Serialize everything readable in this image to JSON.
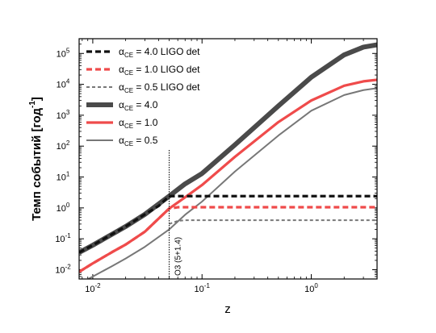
{
  "chart_data": {
    "type": "line",
    "xlabel": "z",
    "ylabel": "Темп событий [год",
    "ylabel_sup": "-1",
    "ylabel_close": "]",
    "xscale": "log",
    "yscale": "log",
    "xlim": [
      0.0075,
      4.0
    ],
    "ylim": [
      0.005,
      300000
    ],
    "x_ticks": [
      {
        "base": "10",
        "exp": "-2",
        "value": 0.01
      },
      {
        "base": "10",
        "exp": "-1",
        "value": 0.1
      },
      {
        "base": "10",
        "exp": "0",
        "value": 1
      }
    ],
    "y_ticks": [
      {
        "base": "10",
        "exp": "-2",
        "value": 0.01
      },
      {
        "base": "10",
        "exp": "-1",
        "value": 0.1
      },
      {
        "base": "10",
        "exp": "0",
        "value": 1
      },
      {
        "base": "10",
        "exp": "1",
        "value": 10
      },
      {
        "base": "10",
        "exp": "2",
        "value": 100
      },
      {
        "base": "10",
        "exp": "3",
        "value": 1000
      },
      {
        "base": "10",
        "exp": "4",
        "value": 10000
      },
      {
        "base": "10",
        "exp": "5",
        "value": 100000
      }
    ],
    "legend_position": "top-left",
    "series": [
      {
        "name_prefix": "α",
        "name_sub": "CE",
        "name_suffix": " = 4.0 LIGO det",
        "color": "#111111",
        "style": "dashed",
        "width": "thick",
        "points": [
          [
            0.0075,
            0.036
          ],
          [
            0.01,
            0.062
          ],
          [
            0.015,
            0.14
          ],
          [
            0.02,
            0.25
          ],
          [
            0.03,
            0.62
          ],
          [
            0.04,
            1.15
          ],
          [
            0.05,
            2.4
          ],
          [
            0.07,
            2.4
          ],
          [
            0.1,
            2.4
          ],
          [
            0.2,
            2.4
          ],
          [
            0.5,
            2.4
          ],
          [
            1,
            2.4
          ],
          [
            2,
            2.4
          ],
          [
            4,
            2.4
          ]
        ]
      },
      {
        "name_prefix": "α",
        "name_sub": "CE",
        "name_suffix": " = 1.0 LIGO det",
        "color": "#ef4b4b",
        "style": "dashed",
        "width": "thick",
        "points": [
          [
            0.0075,
            0.0085
          ],
          [
            0.01,
            0.016
          ],
          [
            0.015,
            0.037
          ],
          [
            0.02,
            0.065
          ],
          [
            0.03,
            0.17
          ],
          [
            0.04,
            0.45
          ],
          [
            0.05,
            0.95
          ],
          [
            0.06,
            1.05
          ],
          [
            0.1,
            1.05
          ],
          [
            0.2,
            1.05
          ],
          [
            0.5,
            1.05
          ],
          [
            1,
            1.05
          ],
          [
            2,
            1.05
          ],
          [
            4,
            1.05
          ]
        ]
      },
      {
        "name_prefix": "α",
        "name_sub": "CE",
        "name_suffix": " = 0.5 LIGO det",
        "color": "#777777",
        "style": "dashed",
        "width": "thin",
        "points": [
          [
            0.05,
            0.3
          ],
          [
            0.06,
            0.38
          ],
          [
            0.07,
            0.4
          ],
          [
            0.1,
            0.4
          ],
          [
            0.2,
            0.4
          ],
          [
            0.5,
            0.4
          ],
          [
            1,
            0.4
          ],
          [
            2,
            0.4
          ],
          [
            4,
            0.4
          ]
        ]
      },
      {
        "name_prefix": "α",
        "name_sub": "CE",
        "name_suffix": " = 4.0",
        "color": "#4a4a4a",
        "style": "solid",
        "width": "xthick",
        "points": [
          [
            0.0075,
            0.036
          ],
          [
            0.01,
            0.062
          ],
          [
            0.015,
            0.14
          ],
          [
            0.02,
            0.25
          ],
          [
            0.03,
            0.62
          ],
          [
            0.05,
            2.4
          ],
          [
            0.07,
            6.0
          ],
          [
            0.1,
            13
          ],
          [
            0.2,
            110
          ],
          [
            0.5,
            2000
          ],
          [
            1,
            17000
          ],
          [
            2,
            90000
          ],
          [
            3,
            160000
          ],
          [
            4,
            190000
          ]
        ]
      },
      {
        "name_prefix": "α",
        "name_sub": "CE",
        "name_suffix": " = 1.0",
        "color": "#ef4b4b",
        "style": "solid",
        "width": "thick",
        "points": [
          [
            0.0075,
            0.0085
          ],
          [
            0.01,
            0.016
          ],
          [
            0.015,
            0.037
          ],
          [
            0.02,
            0.065
          ],
          [
            0.03,
            0.17
          ],
          [
            0.05,
            0.95
          ],
          [
            0.07,
            2.2
          ],
          [
            0.1,
            5.5
          ],
          [
            0.2,
            45
          ],
          [
            0.5,
            600
          ],
          [
            1,
            3000
          ],
          [
            2,
            9000
          ],
          [
            3,
            12500
          ],
          [
            4,
            14000
          ]
        ]
      },
      {
        "name_prefix": "α",
        "name_sub": "CE",
        "name_suffix": " = 0.5",
        "color": "#777777",
        "style": "solid",
        "width": "thin",
        "points": [
          [
            0.0075,
            0.0035
          ],
          [
            0.01,
            0.006
          ],
          [
            0.015,
            0.013
          ],
          [
            0.02,
            0.023
          ],
          [
            0.03,
            0.055
          ],
          [
            0.05,
            0.2
          ],
          [
            0.07,
            0.6
          ],
          [
            0.1,
            1.6
          ],
          [
            0.2,
            15
          ],
          [
            0.5,
            220
          ],
          [
            1,
            1400
          ],
          [
            2,
            4500
          ],
          [
            3,
            6500
          ],
          [
            4,
            7500
          ]
        ]
      }
    ],
    "vline": {
      "x": 0.05,
      "label": "O3 (5+1.4)"
    }
  }
}
